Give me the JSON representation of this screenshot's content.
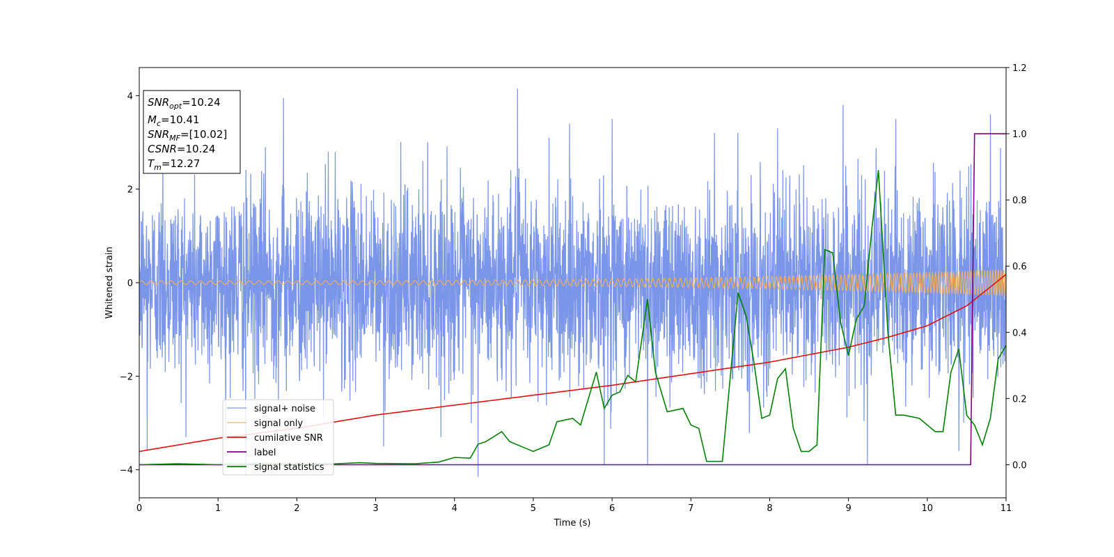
{
  "chart_data": {
    "type": "line",
    "xlabel": "Time (s)",
    "ylabel": "Whitened strain",
    "xlim": [
      0,
      11
    ],
    "ylim_left": [
      -4.6,
      4.6
    ],
    "ylim_right": [
      -0.1,
      1.2
    ],
    "x_ticks": [
      0,
      1,
      2,
      3,
      4,
      5,
      6,
      7,
      8,
      9,
      10,
      11
    ],
    "y_ticks_left": [
      -4,
      -2,
      0,
      2,
      4
    ],
    "y_ticks_right": [
      0.0,
      0.2,
      0.4,
      0.6,
      0.8,
      1.0,
      1.2
    ],
    "grid": false,
    "legend_position": "lower-left",
    "annotation": [
      {
        "base": "SNR",
        "sub": "opt",
        "value": "=10.24"
      },
      {
        "base": "M",
        "sub": "c",
        "value": "=10.41"
      },
      {
        "base": "SNR",
        "sub": "MF",
        "value": "=[10.02]"
      },
      {
        "base": "CSNR",
        "sub": "",
        "value": "=10.24"
      },
      {
        "base": "T",
        "sub": "m",
        "value": "=12.27"
      }
    ],
    "series": [
      {
        "name": "signal+ noise",
        "axis": "left",
        "color": "#7b96e8",
        "description_hint": "dense noise, roughly within [-3, 3.5], peaks to about +4.1 and -4.1",
        "noise_std": 1.0,
        "peaks_high": [
          [
            0.3,
            2.9
          ],
          [
            1.6,
            2.9
          ],
          [
            1.83,
            3.95
          ],
          [
            2.4,
            2.8
          ],
          [
            3.6,
            2.6
          ],
          [
            4.8,
            4.15
          ],
          [
            5.2,
            3.1
          ],
          [
            6.0,
            3.5
          ],
          [
            7.3,
            3.2
          ],
          [
            8.1,
            3.3
          ],
          [
            8.93,
            3.8
          ],
          [
            9.6,
            3.5
          ],
          [
            10.8,
            3.6
          ]
        ],
        "peaks_low": [
          [
            0.1,
            -3.6
          ],
          [
            1.35,
            -4.1
          ],
          [
            3.1,
            -3.5
          ],
          [
            4.3,
            -4.15
          ],
          [
            5.9,
            -3.9
          ],
          [
            6.45,
            -3.9
          ],
          [
            9.24,
            -3.9
          ],
          [
            10.4,
            -3.6
          ]
        ]
      },
      {
        "name": "signal only",
        "axis": "left",
        "color": "#f5b05c",
        "description_hint": "chirp oscillation growing from amplitude ~0.04 to ~0.28 toward t=11",
        "amp_start": 0.04,
        "amp_end": 0.28
      },
      {
        "name": "cumilative SNR",
        "axis": "right",
        "color": "#e01010",
        "x": [
          0,
          1,
          2,
          3,
          4,
          5,
          6,
          7,
          8,
          9,
          9.5,
          10,
          10.5,
          11
        ],
        "y": [
          0.04,
          0.08,
          0.11,
          0.15,
          0.18,
          0.21,
          0.24,
          0.275,
          0.31,
          0.355,
          0.385,
          0.42,
          0.48,
          0.575
        ]
      },
      {
        "name": "label",
        "axis": "right",
        "color": "#800080",
        "x": [
          0,
          10.55,
          10.6,
          11
        ],
        "y": [
          0.0,
          0.0,
          1.0,
          1.0
        ]
      },
      {
        "name": "signal statistics",
        "axis": "right",
        "color": "#008000",
        "x": [
          0,
          0.5,
          1,
          1.5,
          2,
          2.5,
          2.8,
          3.0,
          3.5,
          3.8,
          4.0,
          4.2,
          4.3,
          4.4,
          4.6,
          4.7,
          5.0,
          5.2,
          5.3,
          5.5,
          5.6,
          5.8,
          5.9,
          6.0,
          6.1,
          6.2,
          6.3,
          6.45,
          6.55,
          6.7,
          6.9,
          7.0,
          7.1,
          7.2,
          7.4,
          7.6,
          7.7,
          7.8,
          7.9,
          8.0,
          8.1,
          8.2,
          8.3,
          8.4,
          8.5,
          8.6,
          8.7,
          8.8,
          8.9,
          9.0,
          9.1,
          9.2,
          9.3,
          9.38,
          9.5,
          9.6,
          9.7,
          9.9,
          10.0,
          10.1,
          10.2,
          10.3,
          10.4,
          10.5,
          10.6,
          10.7,
          10.8,
          10.9,
          11.0
        ],
        "y": [
          0.0,
          0.003,
          0.0,
          0.002,
          0.001,
          0.003,
          0.006,
          0.004,
          0.003,
          0.008,
          0.022,
          0.02,
          0.062,
          0.07,
          0.1,
          0.07,
          0.04,
          0.06,
          0.13,
          0.14,
          0.12,
          0.28,
          0.17,
          0.21,
          0.22,
          0.27,
          0.25,
          0.5,
          0.28,
          0.16,
          0.17,
          0.12,
          0.11,
          0.01,
          0.01,
          0.52,
          0.45,
          0.31,
          0.14,
          0.15,
          0.26,
          0.29,
          0.11,
          0.04,
          0.04,
          0.06,
          0.65,
          0.64,
          0.43,
          0.33,
          0.44,
          0.48,
          0.72,
          0.89,
          0.4,
          0.15,
          0.15,
          0.14,
          0.12,
          0.1,
          0.1,
          0.28,
          0.35,
          0.15,
          0.12,
          0.06,
          0.14,
          0.32,
          0.36
        ]
      }
    ]
  }
}
